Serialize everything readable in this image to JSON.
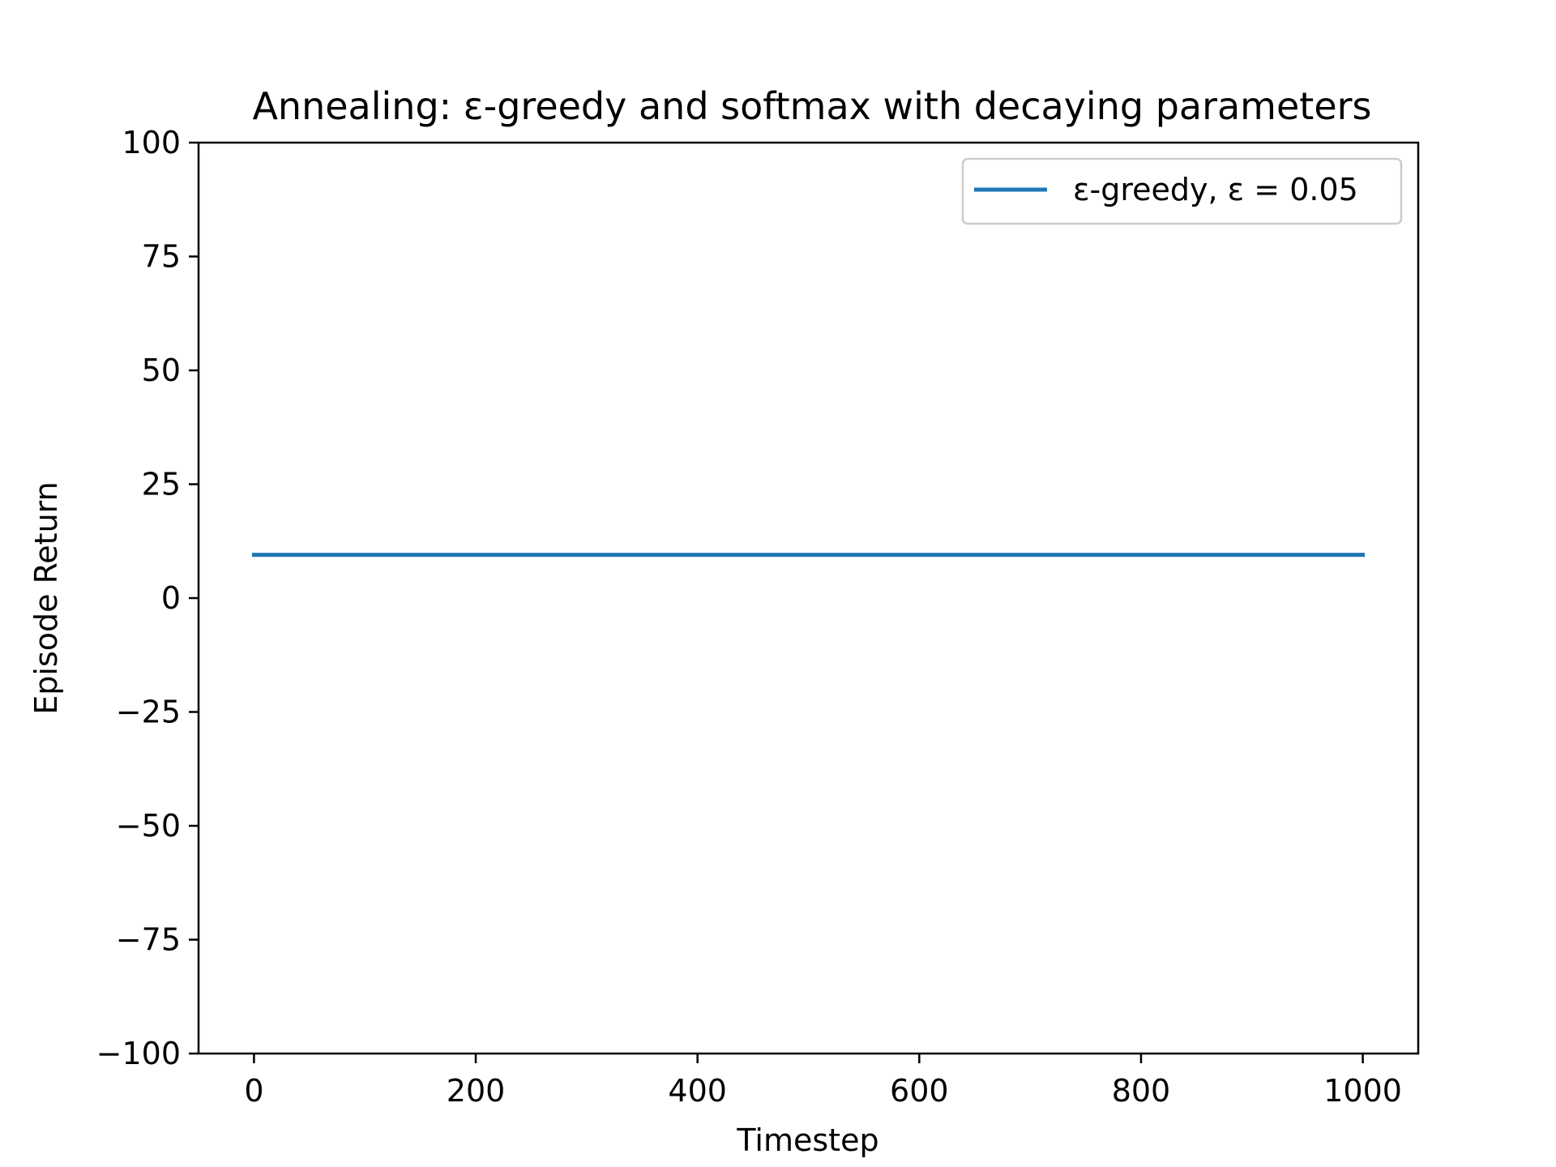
{
  "chart_data": {
    "type": "line",
    "title": "Annealing: ε-greedy and softmax with decaying parameters",
    "xlabel": "Timestep",
    "ylabel": "Episode Return",
    "xlim": [
      -50,
      1050
    ],
    "ylim": [
      -100,
      100
    ],
    "xticks": [
      0,
      200,
      400,
      600,
      800,
      1000
    ],
    "yticks": [
      -100,
      -75,
      -50,
      -25,
      0,
      25,
      50,
      75,
      100
    ],
    "xtick_labels": [
      "0",
      "200",
      "400",
      "600",
      "800",
      "1000"
    ],
    "ytick_labels": [
      "−100",
      "−75",
      "−50",
      "−25",
      "0",
      "25",
      "50",
      "75",
      "100"
    ],
    "grid": false,
    "legend_position": "top-right",
    "series": [
      {
        "name": "ε-greedy, ε = 0.05",
        "color": "#1f77b4",
        "x": [
          0,
          1000
        ],
        "y": [
          9.5,
          9.5
        ]
      }
    ]
  }
}
